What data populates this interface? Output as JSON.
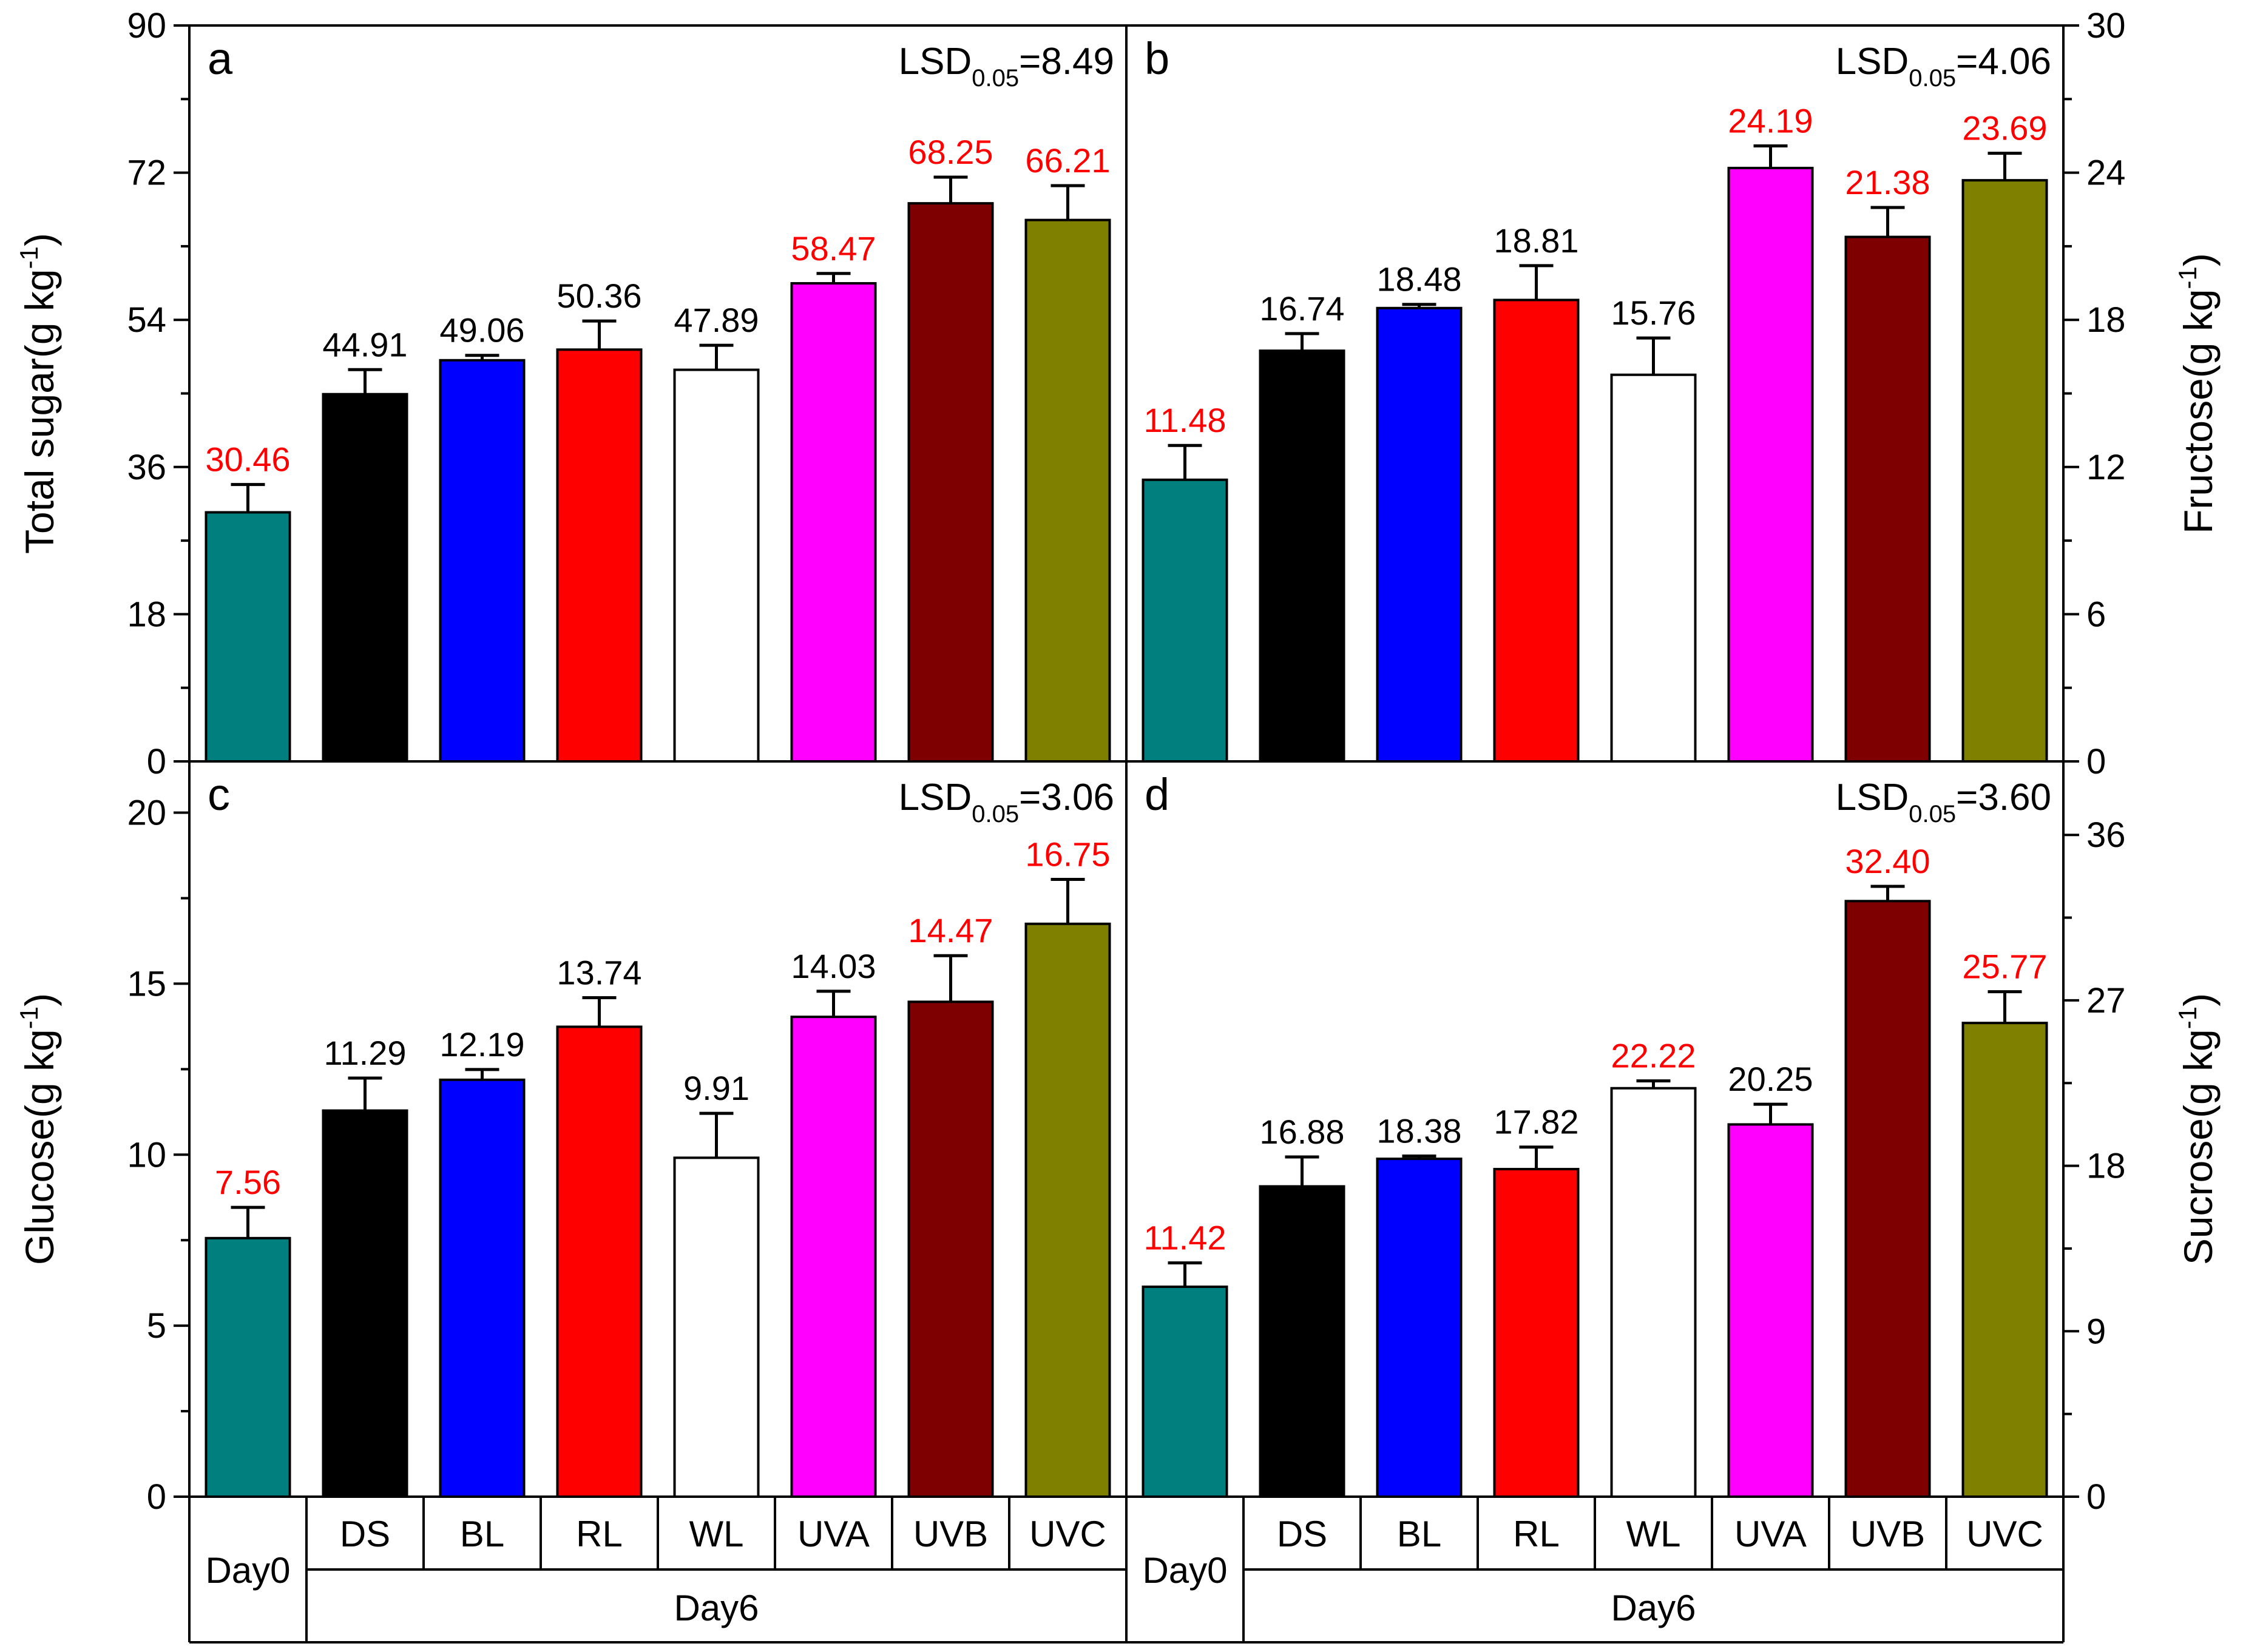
{
  "colors": {
    "Day0": "#007f7f",
    "DS": "#000000",
    "BL": "#0000ff",
    "RL": "#ff0000",
    "WL": "#ffffff",
    "UVA": "#ff00ff",
    "UVB": "#7f0000",
    "UVC": "#7f7f00",
    "highlight_label": "#ff0000",
    "normal_label": "#000000"
  },
  "footer": {
    "day0_label": "Day0",
    "day6_label": "Day6"
  },
  "chart_data": [
    {
      "type": "bar",
      "panel_letter": "a",
      "ylabel_main": "Total sugar(g kg",
      "ylabel_sup": "-1",
      "ylabel_tail": ")",
      "lsd_main": "LSD",
      "lsd_sub": "0.05",
      "lsd_value": "=8.49",
      "ylim": [
        0,
        90
      ],
      "yticks": [
        "0",
        "18",
        "36",
        "54",
        "72",
        "90"
      ],
      "categories": [
        "Day0",
        "DS",
        "BL",
        "RL",
        "WL",
        "UVA",
        "UVB",
        "UVC"
      ],
      "values": [
        30.46,
        44.91,
        49.06,
        50.36,
        47.89,
        58.47,
        68.25,
        66.21
      ],
      "errors": [
        3.4,
        3.0,
        0.6,
        3.5,
        3.0,
        1.2,
        3.2,
        4.2
      ],
      "labels": [
        "30.46",
        "44.91",
        "49.06",
        "50.36",
        "47.89",
        "58.47",
        "68.25",
        "66.21"
      ],
      "label_highlight": [
        true,
        false,
        false,
        false,
        false,
        true,
        true,
        true
      ]
    },
    {
      "type": "bar",
      "panel_letter": "b",
      "ylabel_main": "Fructose(g kg",
      "ylabel_sup": "-1",
      "ylabel_tail": ")",
      "lsd_main": "LSD",
      "lsd_sub": "0.05",
      "lsd_value": "=4.06",
      "ylim": [
        0,
        30
      ],
      "yticks": [
        "0",
        "6",
        "12",
        "18",
        "24",
        "30"
      ],
      "categories": [
        "Day0",
        "DS",
        "BL",
        "RL",
        "WL",
        "UVA",
        "UVB",
        "UVC"
      ],
      "values": [
        11.48,
        16.74,
        18.48,
        18.81,
        15.76,
        24.19,
        21.38,
        23.69
      ],
      "errors": [
        1.4,
        0.7,
        0.15,
        1.4,
        1.5,
        0.9,
        1.2,
        1.1
      ],
      "labels": [
        "11.48",
        "16.74",
        "18.48",
        "18.81",
        "15.76",
        "24.19",
        "21.38",
        "23.69"
      ],
      "label_highlight": [
        true,
        false,
        false,
        false,
        false,
        true,
        true,
        true
      ]
    },
    {
      "type": "bar",
      "panel_letter": "c",
      "ylabel_main": "Glucose(g kg",
      "ylabel_sup": "-1",
      "ylabel_tail": ")",
      "lsd_main": "LSD",
      "lsd_sub": "0.05",
      "lsd_value": "=3.06",
      "ylim": [
        0,
        21.5
      ],
      "yticks": [
        "0",
        "5",
        "10",
        "15",
        "20"
      ],
      "categories": [
        "Day0",
        "DS",
        "BL",
        "RL",
        "WL",
        "UVA",
        "UVB",
        "UVC"
      ],
      "values": [
        7.56,
        11.29,
        12.19,
        13.74,
        9.91,
        14.03,
        14.47,
        16.75
      ],
      "errors": [
        0.9,
        0.95,
        0.3,
        0.85,
        1.3,
        0.75,
        1.35,
        1.3
      ],
      "labels": [
        "7.56",
        "11.29",
        "12.19",
        "13.74",
        "9.91",
        "14.03",
        "14.47",
        "16.75"
      ],
      "label_highlight": [
        true,
        false,
        false,
        false,
        false,
        false,
        true,
        true
      ]
    },
    {
      "type": "bar",
      "panel_letter": "d",
      "ylabel_main": "Sucrose(g kg",
      "ylabel_sup": "-1",
      "ylabel_tail": ")",
      "lsd_main": "LSD",
      "lsd_sub": "0.05",
      "lsd_value": "=3.60",
      "ylim": [
        0,
        40
      ],
      "yticks": [
        "0",
        "9",
        "18",
        "27",
        "36"
      ],
      "categories": [
        "Day0",
        "DS",
        "BL",
        "RL",
        "WL",
        "UVA",
        "UVB",
        "UVC"
      ],
      "values": [
        11.42,
        16.88,
        18.38,
        17.82,
        22.22,
        20.25,
        32.4,
        25.77
      ],
      "errors": [
        1.3,
        1.6,
        0.15,
        1.2,
        0.4,
        1.1,
        0.8,
        1.7
      ],
      "labels": [
        "11.42",
        "16.88",
        "18.38",
        "17.82",
        "22.22",
        "20.25",
        "32.40",
        "25.77"
      ],
      "label_highlight": [
        true,
        false,
        false,
        false,
        true,
        false,
        true,
        true
      ]
    }
  ]
}
